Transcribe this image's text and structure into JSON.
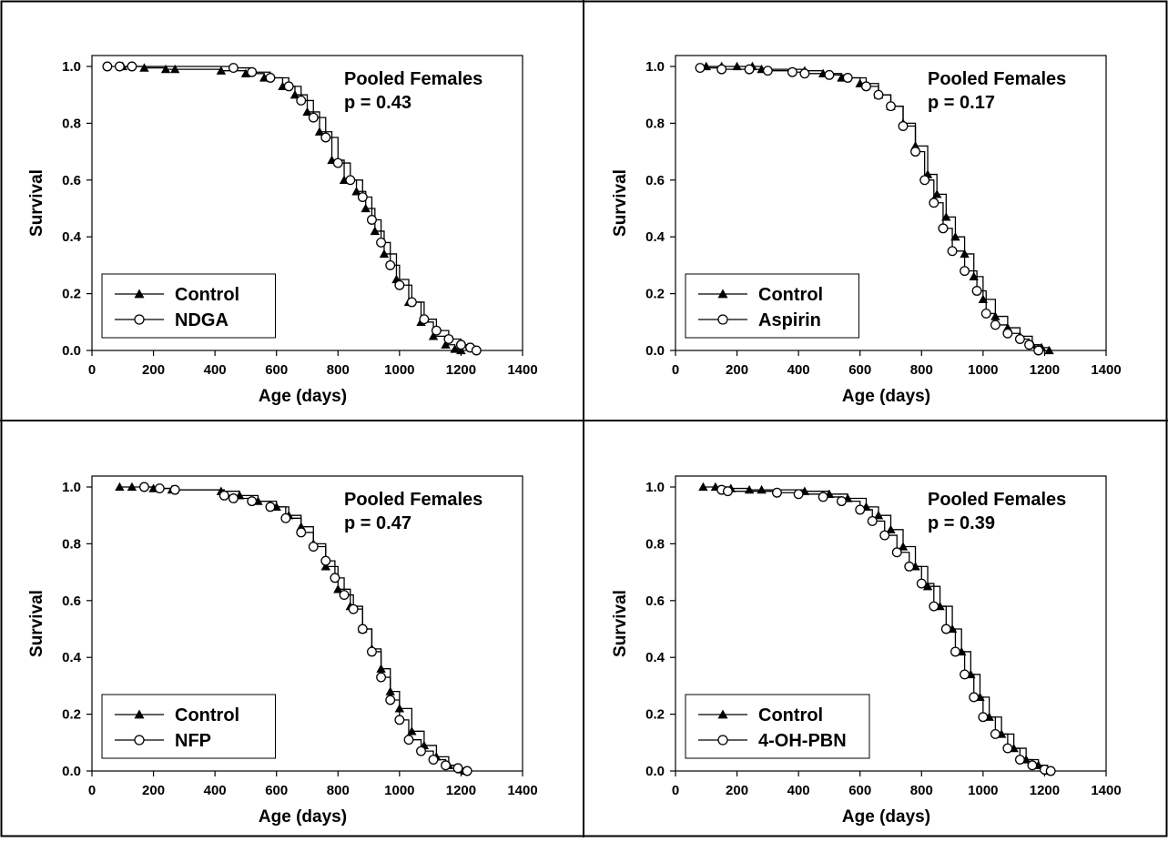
{
  "chart_data": [
    {
      "type": "line",
      "xlabel": "Age (days)",
      "ylabel": "Survival",
      "xlim": [
        0,
        1400
      ],
      "ylim": [
        0,
        1.0
      ],
      "xticks": [
        "0",
        "200",
        "400",
        "600",
        "800",
        "1000",
        "1200",
        "1400"
      ],
      "yticks": [
        "0.0",
        "0.2",
        "0.4",
        "0.6",
        "0.8",
        "1.0"
      ],
      "annotation": [
        "Pooled Females",
        "p = 0.43"
      ],
      "legend_position": "bottom-left",
      "series": [
        {
          "name": "Control",
          "marker": "filled-triangle",
          "points": [
            [
              100,
              1.0
            ],
            [
              170,
              0.995
            ],
            [
              240,
              0.99
            ],
            [
              270,
              0.99
            ],
            [
              420,
              0.985
            ],
            [
              500,
              0.975
            ],
            [
              560,
              0.96
            ],
            [
              620,
              0.93
            ],
            [
              660,
              0.9
            ],
            [
              700,
              0.84
            ],
            [
              740,
              0.77
            ],
            [
              780,
              0.67
            ],
            [
              820,
              0.6
            ],
            [
              860,
              0.56
            ],
            [
              890,
              0.5
            ],
            [
              920,
              0.42
            ],
            [
              950,
              0.34
            ],
            [
              990,
              0.25
            ],
            [
              1030,
              0.17
            ],
            [
              1070,
              0.1
            ],
            [
              1110,
              0.05
            ],
            [
              1150,
              0.02
            ],
            [
              1180,
              0.005
            ],
            [
              1200,
              0.0
            ]
          ]
        },
        {
          "name": "NDGA",
          "marker": "open-circle",
          "points": [
            [
              50,
              1.0
            ],
            [
              90,
              1.0
            ],
            [
              130,
              1.0
            ],
            [
              460,
              0.995
            ],
            [
              520,
              0.98
            ],
            [
              580,
              0.96
            ],
            [
              640,
              0.93
            ],
            [
              680,
              0.88
            ],
            [
              720,
              0.82
            ],
            [
              760,
              0.75
            ],
            [
              800,
              0.66
            ],
            [
              840,
              0.6
            ],
            [
              880,
              0.54
            ],
            [
              910,
              0.46
            ],
            [
              940,
              0.38
            ],
            [
              970,
              0.3
            ],
            [
              1000,
              0.23
            ],
            [
              1040,
              0.17
            ],
            [
              1080,
              0.11
            ],
            [
              1120,
              0.07
            ],
            [
              1160,
              0.04
            ],
            [
              1200,
              0.02
            ],
            [
              1230,
              0.01
            ],
            [
              1250,
              0.0
            ]
          ]
        }
      ]
    },
    {
      "type": "line",
      "xlabel": "Age (days)",
      "ylabel": "Survival",
      "xlim": [
        0,
        1400
      ],
      "ylim": [
        0,
        1.0
      ],
      "xticks": [
        "0",
        "200",
        "400",
        "600",
        "800",
        "1000",
        "1200",
        "1400"
      ],
      "yticks": [
        "0.0",
        "0.2",
        "0.4",
        "0.6",
        "0.8",
        "1.0"
      ],
      "annotation": [
        "Pooled Females",
        "p = 0.17"
      ],
      "legend_position": "bottom-left",
      "series": [
        {
          "name": "Control",
          "marker": "filled-triangle",
          "points": [
            [
              100,
              1.0
            ],
            [
              150,
              1.0
            ],
            [
              200,
              1.0
            ],
            [
              250,
              1.0
            ],
            [
              280,
              0.99
            ],
            [
              420,
              0.985
            ],
            [
              480,
              0.975
            ],
            [
              540,
              0.96
            ],
            [
              600,
              0.94
            ],
            [
              660,
              0.9
            ],
            [
              700,
              0.86
            ],
            [
              740,
              0.8
            ],
            [
              780,
              0.72
            ],
            [
              820,
              0.62
            ],
            [
              850,
              0.55
            ],
            [
              880,
              0.47
            ],
            [
              910,
              0.4
            ],
            [
              940,
              0.34
            ],
            [
              970,
              0.26
            ],
            [
              1000,
              0.18
            ],
            [
              1040,
              0.12
            ],
            [
              1080,
              0.08
            ],
            [
              1120,
              0.05
            ],
            [
              1160,
              0.02
            ],
            [
              1190,
              0.01
            ],
            [
              1215,
              0.0
            ]
          ]
        },
        {
          "name": "Aspirin",
          "marker": "open-circle",
          "points": [
            [
              80,
              0.995
            ],
            [
              150,
              0.99
            ],
            [
              240,
              0.99
            ],
            [
              300,
              0.985
            ],
            [
              380,
              0.98
            ],
            [
              420,
              0.975
            ],
            [
              500,
              0.97
            ],
            [
              560,
              0.96
            ],
            [
              620,
              0.93
            ],
            [
              660,
              0.9
            ],
            [
              700,
              0.86
            ],
            [
              740,
              0.79
            ],
            [
              780,
              0.7
            ],
            [
              810,
              0.6
            ],
            [
              840,
              0.52
            ],
            [
              870,
              0.43
            ],
            [
              900,
              0.35
            ],
            [
              940,
              0.28
            ],
            [
              980,
              0.21
            ],
            [
              1010,
              0.13
            ],
            [
              1040,
              0.09
            ],
            [
              1080,
              0.06
            ],
            [
              1120,
              0.04
            ],
            [
              1150,
              0.02
            ],
            [
              1180,
              0.0
            ]
          ]
        }
      ]
    },
    {
      "type": "line",
      "xlabel": "Age (days)",
      "ylabel": "Survival",
      "xlim": [
        0,
        1400
      ],
      "ylim": [
        0,
        1.0
      ],
      "xticks": [
        "0",
        "200",
        "400",
        "600",
        "800",
        "1000",
        "1200",
        "1400"
      ],
      "yticks": [
        "0.0",
        "0.2",
        "0.4",
        "0.6",
        "0.8",
        "1.0"
      ],
      "annotation": [
        "Pooled Females",
        "p = 0.47"
      ],
      "legend_position": "bottom-left",
      "series": [
        {
          "name": "Control",
          "marker": "filled-triangle",
          "points": [
            [
              90,
              1.0
            ],
            [
              130,
              1.0
            ],
            [
              200,
              0.995
            ],
            [
              260,
              0.99
            ],
            [
              420,
              0.985
            ],
            [
              480,
              0.97
            ],
            [
              540,
              0.95
            ],
            [
              600,
              0.93
            ],
            [
              640,
              0.9
            ],
            [
              680,
              0.86
            ],
            [
              720,
              0.8
            ],
            [
              760,
              0.72
            ],
            [
              800,
              0.64
            ],
            [
              840,
              0.58
            ],
            [
              880,
              0.5
            ],
            [
              910,
              0.43
            ],
            [
              940,
              0.36
            ],
            [
              970,
              0.28
            ],
            [
              1000,
              0.22
            ],
            [
              1040,
              0.14
            ],
            [
              1080,
              0.09
            ],
            [
              1120,
              0.05
            ],
            [
              1160,
              0.02
            ],
            [
              1200,
              0.005
            ],
            [
              1215,
              0.0
            ]
          ]
        },
        {
          "name": "NFP",
          "marker": "open-circle",
          "points": [
            [
              170,
              1.0
            ],
            [
              220,
              0.995
            ],
            [
              270,
              0.99
            ],
            [
              430,
              0.97
            ],
            [
              460,
              0.96
            ],
            [
              520,
              0.95
            ],
            [
              580,
              0.93
            ],
            [
              630,
              0.89
            ],
            [
              680,
              0.84
            ],
            [
              720,
              0.79
            ],
            [
              760,
              0.74
            ],
            [
              790,
              0.68
            ],
            [
              820,
              0.62
            ],
            [
              850,
              0.57
            ],
            [
              880,
              0.5
            ],
            [
              910,
              0.42
            ],
            [
              940,
              0.33
            ],
            [
              970,
              0.25
            ],
            [
              1000,
              0.18
            ],
            [
              1030,
              0.11
            ],
            [
              1070,
              0.07
            ],
            [
              1110,
              0.04
            ],
            [
              1150,
              0.02
            ],
            [
              1190,
              0.01
            ],
            [
              1220,
              0.0
            ]
          ]
        }
      ]
    },
    {
      "type": "line",
      "xlabel": "Age (days)",
      "ylabel": "Survival",
      "xlim": [
        0,
        1400
      ],
      "ylim": [
        0,
        1.0
      ],
      "xticks": [
        "0",
        "200",
        "400",
        "600",
        "800",
        "1000",
        "1200",
        "1400"
      ],
      "yticks": [
        "0.0",
        "0.2",
        "0.4",
        "0.6",
        "0.8",
        "1.0"
      ],
      "annotation": [
        "Pooled Females",
        "p = 0.39"
      ],
      "legend_position": "bottom-left",
      "series": [
        {
          "name": "Control",
          "marker": "filled-triangle",
          "points": [
            [
              90,
              1.0
            ],
            [
              130,
              1.0
            ],
            [
              180,
              0.995
            ],
            [
              240,
              0.99
            ],
            [
              280,
              0.99
            ],
            [
              420,
              0.985
            ],
            [
              500,
              0.975
            ],
            [
              560,
              0.96
            ],
            [
              620,
              0.93
            ],
            [
              660,
              0.9
            ],
            [
              700,
              0.85
            ],
            [
              740,
              0.79
            ],
            [
              780,
              0.72
            ],
            [
              820,
              0.65
            ],
            [
              860,
              0.58
            ],
            [
              900,
              0.5
            ],
            [
              930,
              0.42
            ],
            [
              960,
              0.34
            ],
            [
              990,
              0.26
            ],
            [
              1020,
              0.19
            ],
            [
              1060,
              0.13
            ],
            [
              1100,
              0.08
            ],
            [
              1140,
              0.04
            ],
            [
              1180,
              0.02
            ],
            [
              1210,
              0.0
            ]
          ]
        },
        {
          "name": "4-OH-PBN",
          "marker": "open-circle",
          "points": [
            [
              150,
              0.99
            ],
            [
              170,
              0.985
            ],
            [
              330,
              0.98
            ],
            [
              400,
              0.975
            ],
            [
              480,
              0.965
            ],
            [
              540,
              0.95
            ],
            [
              600,
              0.92
            ],
            [
              640,
              0.88
            ],
            [
              680,
              0.83
            ],
            [
              720,
              0.77
            ],
            [
              760,
              0.72
            ],
            [
              800,
              0.66
            ],
            [
              840,
              0.58
            ],
            [
              880,
              0.5
            ],
            [
              910,
              0.42
            ],
            [
              940,
              0.34
            ],
            [
              970,
              0.26
            ],
            [
              1000,
              0.19
            ],
            [
              1040,
              0.13
            ],
            [
              1080,
              0.08
            ],
            [
              1120,
              0.04
            ],
            [
              1160,
              0.02
            ],
            [
              1200,
              0.005
            ],
            [
              1220,
              0.0
            ]
          ]
        }
      ]
    }
  ]
}
